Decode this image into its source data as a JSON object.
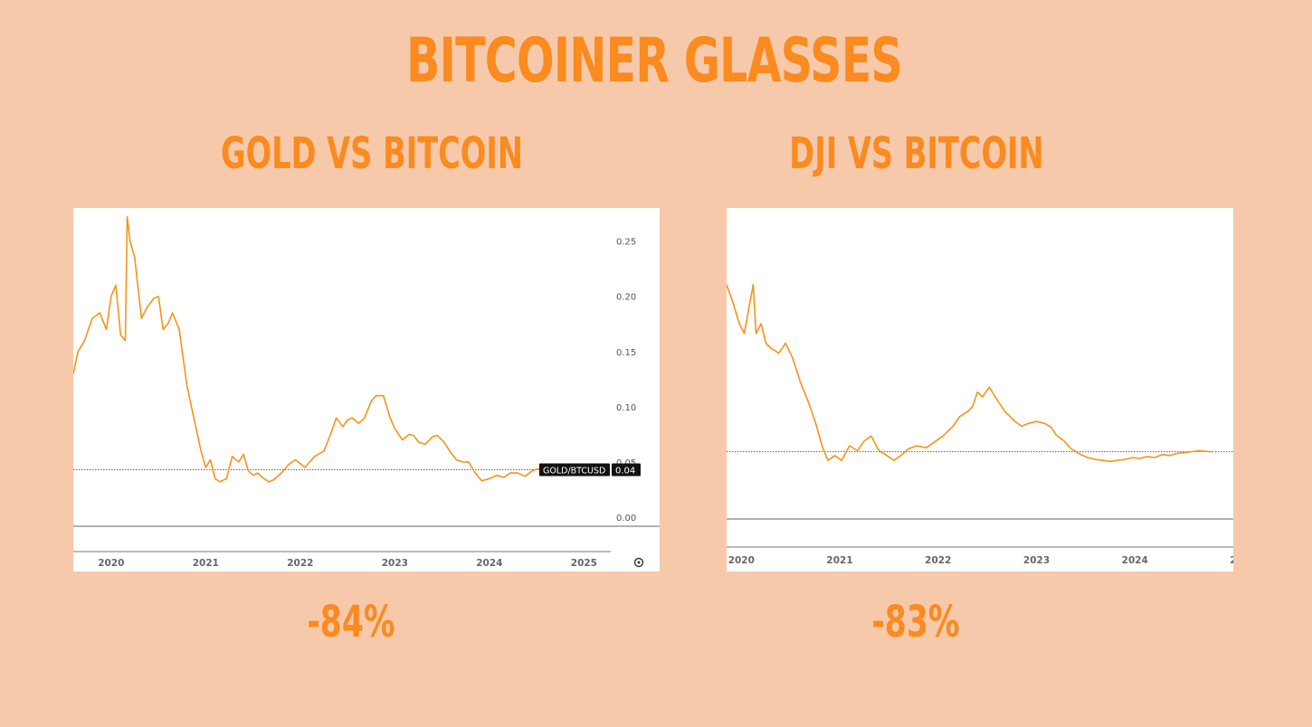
{
  "poster": {
    "title": "BITCOINER GLASSES",
    "left_title": "GOLD VS BITCOIN",
    "right_title": "DJI VS BITCOIN",
    "left_change": "-84%",
    "right_change": "-83%"
  },
  "colors": {
    "background": "#f6c9aa",
    "accent": "#fb8a1f",
    "line": "#f7931a"
  },
  "chart_data": [
    {
      "type": "line",
      "title": "GOLD VS BITCOIN",
      "series": [
        {
          "name": "GOLD/BTCUSD",
          "x": [
            2019.6,
            2019.65,
            2019.72,
            2019.8,
            2019.88,
            2019.95,
            2020.0,
            2020.05,
            2020.1,
            2020.15,
            2020.17,
            2020.2,
            2020.25,
            2020.32,
            2020.38,
            2020.45,
            2020.5,
            2020.55,
            2020.6,
            2020.65,
            2020.72,
            2020.8,
            2020.85,
            2020.9,
            2020.95,
            2021.0,
            2021.05,
            2021.1,
            2021.15,
            2021.22,
            2021.28,
            2021.35,
            2021.4,
            2021.45,
            2021.5,
            2021.55,
            2021.6,
            2021.67,
            2021.72,
            2021.8,
            2021.88,
            2021.95,
            2022.05,
            2022.15,
            2022.25,
            2022.32,
            2022.38,
            2022.45,
            2022.5,
            2022.55,
            2022.62,
            2022.68,
            2022.75,
            2022.8,
            2022.88,
            2022.95,
            2023.0,
            2023.08,
            2023.15,
            2023.2,
            2023.25,
            2023.32,
            2023.4,
            2023.45,
            2023.52,
            2023.58,
            2023.65,
            2023.72,
            2023.78,
            2023.85,
            2023.92,
            2024.0,
            2024.08,
            2024.15,
            2024.22,
            2024.3,
            2024.38,
            2024.45,
            2024.52,
            2024.6,
            2024.68,
            2024.75
          ],
          "values": [
            0.13,
            0.15,
            0.16,
            0.18,
            0.185,
            0.17,
            0.2,
            0.21,
            0.165,
            0.16,
            0.272,
            0.25,
            0.235,
            0.18,
            0.19,
            0.198,
            0.2,
            0.17,
            0.175,
            0.185,
            0.17,
            0.12,
            0.1,
            0.08,
            0.06,
            0.045,
            0.052,
            0.035,
            0.032,
            0.035,
            0.055,
            0.05,
            0.057,
            0.042,
            0.038,
            0.04,
            0.036,
            0.032,
            0.034,
            0.04,
            0.048,
            0.052,
            0.045,
            0.055,
            0.06,
            0.075,
            0.09,
            0.082,
            0.088,
            0.09,
            0.085,
            0.09,
            0.105,
            0.11,
            0.11,
            0.09,
            0.08,
            0.07,
            0.075,
            0.074,
            0.068,
            0.066,
            0.073,
            0.074,
            0.068,
            0.06,
            0.052,
            0.05,
            0.05,
            0.04,
            0.033,
            0.035,
            0.038,
            0.036,
            0.04,
            0.04,
            0.037,
            0.042,
            0.044,
            0.042,
            0.044,
            0.043
          ]
        }
      ],
      "y_ticks": [
        "0.25",
        "0.20",
        "0.15",
        "0.10",
        "0.05",
        "0.00"
      ],
      "ylim": [
        0,
        0.28
      ],
      "x_ticks": [
        "2020",
        "2021",
        "2022",
        "2023",
        "2024",
        "2025"
      ],
      "xlim": [
        2019.6,
        2025.8
      ],
      "last_value_label": "0.04",
      "series_tag": "GOLD/BTCUSD"
    },
    {
      "type": "line",
      "title": "DJI VS BITCOIN",
      "series": [
        {
          "x": [
            2019.6,
            2019.65,
            2019.72,
            2019.78,
            2019.85,
            2019.92,
            2019.98,
            2020.03,
            2020.08,
            2020.12,
            2020.15,
            2020.2,
            2020.25,
            2020.3,
            2020.38,
            2020.45,
            2020.52,
            2020.6,
            2020.68,
            2020.75,
            2020.82,
            2020.88,
            2020.95,
            2021.02,
            2021.1,
            2021.18,
            2021.25,
            2021.32,
            2021.4,
            2021.48,
            2021.55,
            2021.62,
            2021.7,
            2021.78,
            2021.88,
            2021.95,
            2022.05,
            2022.15,
            2022.22,
            2022.3,
            2022.35,
            2022.4,
            2022.45,
            2022.52,
            2022.6,
            2022.68,
            2022.78,
            2022.85,
            2022.92,
            2023.0,
            2023.08,
            2023.15,
            2023.2,
            2023.28,
            2023.35,
            2023.45,
            2023.52,
            2023.6,
            2023.68,
            2023.75,
            2023.82,
            2023.9,
            2023.98,
            2024.05,
            2024.12,
            2024.2,
            2024.28,
            2024.35,
            2024.42,
            2024.5,
            2024.58,
            2024.65,
            2024.75,
            2024.8
          ],
          "values": [
            0.205,
            0.195,
            0.21,
            0.228,
            0.24,
            0.22,
            0.2,
            0.19,
            0.218,
            0.24,
            0.19,
            0.2,
            0.18,
            0.175,
            0.17,
            0.18,
            0.165,
            0.14,
            0.12,
            0.1,
            0.075,
            0.06,
            0.065,
            0.06,
            0.075,
            0.07,
            0.08,
            0.085,
            0.07,
            0.065,
            0.06,
            0.065,
            0.072,
            0.075,
            0.073,
            0.078,
            0.085,
            0.095,
            0.105,
            0.11,
            0.115,
            0.13,
            0.125,
            0.135,
            0.122,
            0.11,
            0.1,
            0.095,
            0.098,
            0.1,
            0.098,
            0.094,
            0.086,
            0.08,
            0.072,
            0.066,
            0.063,
            0.061,
            0.06,
            0.059,
            0.06,
            0.061,
            0.063,
            0.062,
            0.064,
            0.063,
            0.066,
            0.065,
            0.067,
            0.068,
            0.069,
            0.07,
            0.069,
            0.069
          ]
        }
      ],
      "y_ticks": [],
      "ylim": [
        0,
        0.3
      ],
      "x_ticks": [
        "2020",
        "2021",
        "2022",
        "2023",
        "2024",
        "2"
      ],
      "xlim": [
        2019.85,
        2025.0
      ]
    }
  ]
}
